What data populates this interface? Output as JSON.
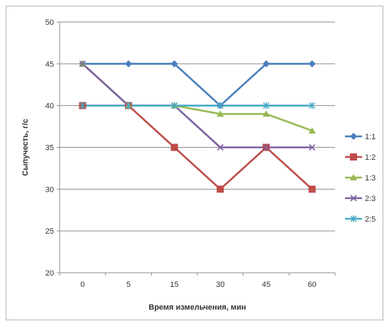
{
  "chart_data": {
    "type": "line",
    "title": "",
    "xlabel": "Время измельчения, мин",
    "ylabel": "Сыпучесть, г/с",
    "categories": [
      "0",
      "5",
      "15",
      "30",
      "45",
      "60"
    ],
    "ylim": [
      20,
      50
    ],
    "ystep": 5,
    "yticks": [
      "20",
      "25",
      "30",
      "35",
      "40",
      "45",
      "50"
    ],
    "grid": "horizontal",
    "legend_position": "right",
    "series": [
      {
        "name": "1:1",
        "values": [
          45,
          45,
          45,
          40,
          45,
          45
        ],
        "color": "#4a7ebb",
        "marker": "diamond"
      },
      {
        "name": "1:2",
        "values": [
          40,
          40,
          35,
          30,
          35,
          30
        ],
        "color": "#be4b48",
        "marker": "square"
      },
      {
        "name": "1:3",
        "values": [
          45,
          40,
          40,
          39,
          39,
          37
        ],
        "color": "#98b954",
        "marker": "triangle"
      },
      {
        "name": "2:3",
        "values": [
          45,
          40,
          40,
          35,
          35,
          35
        ],
        "color": "#7d60a0",
        "marker": "x"
      },
      {
        "name": "2:5",
        "values": [
          40,
          40,
          40,
          40,
          40,
          40
        ],
        "color": "#46aac5",
        "marker": "star"
      }
    ]
  }
}
